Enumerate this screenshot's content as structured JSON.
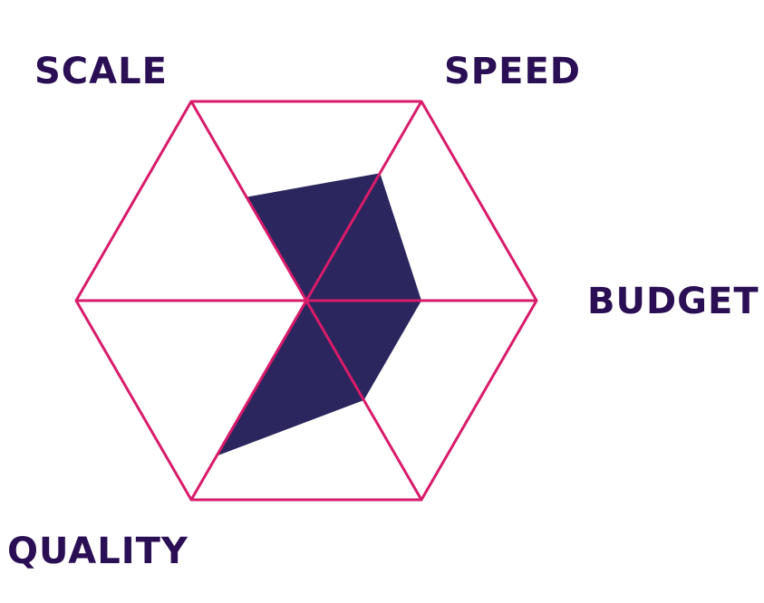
{
  "chart_data": {
    "type": "radar",
    "axes": [
      "SPEED",
      "BUDGET",
      "",
      "QUALITY",
      "",
      "SCALE"
    ],
    "values": [
      0.64,
      0.5,
      0.5,
      0.78,
      0.0,
      0.52
    ],
    "max": 1,
    "grid": true,
    "colors": {
      "grid": "#d81b6a",
      "fill": "#2b275e",
      "label": "#2b0f55"
    }
  }
}
